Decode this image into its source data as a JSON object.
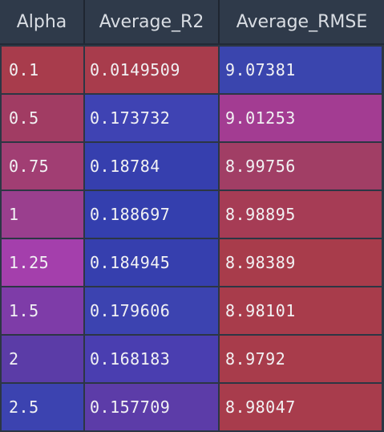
{
  "table": {
    "headers": [
      "Alpha",
      "Average_R2",
      "Average_RMSE"
    ],
    "rows": [
      {
        "cells": [
          "0.1",
          "0.0149509",
          "9.07381"
        ],
        "colors": [
          "#a83c4c",
          "#a83c4c",
          "#3a45ae"
        ]
      },
      {
        "cells": [
          "0.5",
          "0.173732",
          "9.01253"
        ],
        "colors": [
          "#a13c63",
          "#3f43b3",
          "#a33c92"
        ]
      },
      {
        "cells": [
          "0.75",
          "0.18784",
          "8.99756"
        ],
        "colors": [
          "#a13e73",
          "#363fae",
          "#a13e65"
        ]
      },
      {
        "cells": [
          "1",
          "0.188697",
          "8.98895"
        ],
        "colors": [
          "#9a3f8e",
          "#343fae",
          "#a63c55"
        ]
      },
      {
        "cells": [
          "1.25",
          "0.184945",
          "8.98389"
        ],
        "colors": [
          "#a43fac",
          "#363fae",
          "#a83c4b"
        ]
      },
      {
        "cells": [
          "1.5",
          "0.179606",
          "8.98101"
        ],
        "colors": [
          "#7e3ca8",
          "#3c43b0",
          "#a83c4b"
        ]
      },
      {
        "cells": [
          "2",
          "0.168183",
          "8.9792"
        ],
        "colors": [
          "#5b3ca7",
          "#4a3eb0",
          "#a83c4b"
        ]
      },
      {
        "cells": [
          "2.5",
          "0.157709",
          "8.98047"
        ],
        "colors": [
          "#3c43b0",
          "#5c3ca8",
          "#a83c4c"
        ]
      }
    ]
  }
}
